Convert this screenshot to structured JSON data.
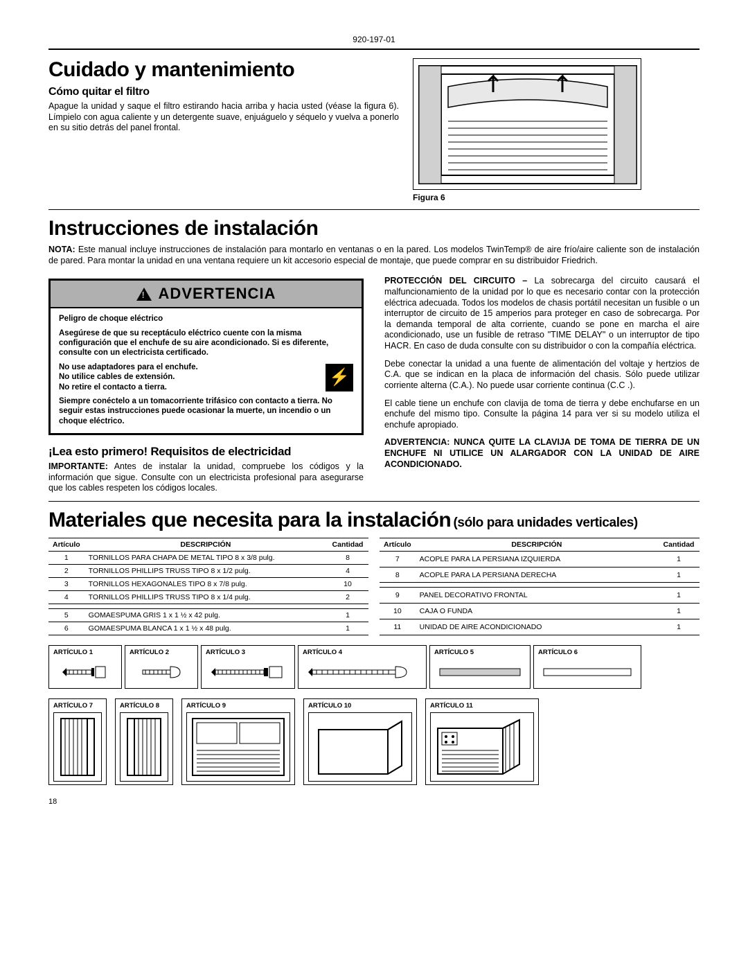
{
  "doc_number": "920-197-01",
  "page_number": "18",
  "care": {
    "title": "Cuidado y mantenimiento",
    "filter_h": "Cómo quitar el filtro",
    "filter_p": "Apague la unidad y saque el filtro estirando hacia arriba y hacia usted (véase la figura 6). Límpielo con agua caliente y un detergente suave, enjuáguelo y séquelo y vuelva a ponerlo en su sitio detrás del panel frontal.",
    "fig_label": "Figura 6"
  },
  "install": {
    "title": "Instrucciones de instalación",
    "nota_label": "NOTA:",
    "nota_text": "Este manual incluye instrucciones de instalación para montarlo en ventanas o en la pared. Los modelos TwinTemp® de aire frío/aire caliente son de instalación de pared. Para montar la unidad en una ventana requiere un kit accesorio especial de montaje, que puede comprar en su distribuidor Friedrich."
  },
  "warn": {
    "header": "ADVERTENCIA",
    "p1_bold": "Peligro de choque eléctrico",
    "p2": "Asegúrese de que su receptáculo eléctrico cuente con la misma configuración que el enchufe de su aire acondicionado. Si es diferente, consulte con un electricista certificado.",
    "p3a": "No use adaptadores para el enchufe.",
    "p3b": "No utilice cables de extensión.",
    "p3c": "No retire el contacto a tierra.",
    "p4": "Siempre conéctelo a un tomacorriente trifásico con contacto a tierra. No seguir estas instrucciones puede ocasionar la muerte, un incendio o un choque eléctrico."
  },
  "elec": {
    "h": "¡Lea esto primero! Requisitos de electricidad",
    "imp_label": "IMPORTANTE:",
    "imp_text": "Antes de instalar la unidad, compruebe los códigos y la información que sigue. Consulte con un electricista profesional para asegurarse que los cables respeten los códigos locales.",
    "circ_label": "PROTECCIÓN DEL CIRCUITO –",
    "circ_text": "La sobrecarga del circuito causará el malfuncionamiento de la unidad por lo que es necesario contar con la protección eléctrica adecuada. Todos los modelos de chasis portátil necesitan un fusible o un interruptor de circuito de 15 amperios para proteger en caso de sobrecarga. Por la demanda temporal de alta corriente, cuando se pone en marcha el aire acondicionado, use un fusible de retraso \"TIME DELAY\" o un interruptor de tipo HACR. En caso de duda consulte con su distribuidor o con la compañía eléctrica.",
    "p2": "Debe conectar la unidad a una fuente de alimentación del voltaje y hertzios de C.A. que se indican en la placa de información del chasis. Sólo puede utilizar corriente alterna (C.A.). No puede usar corriente continua (C.C .).",
    "p3": "El cable tiene un enchufe con clavija de toma de tierra y debe enchufarse en un enchufe del mismo tipo. Consulte la página 14 para ver si su modelo utiliza el enchufe apropiado.",
    "warn2": "ADVERTENCIA: NUNCA QUITE LA CLAVIJA DE TOMA DE TIERRA DE UN ENCHUFE NI UTILICE UN ALARGADOR CON LA UNIDAD DE AIRE ACONDICIONADO."
  },
  "materials": {
    "title": "Materiales que necesita para la instalación",
    "sub": "(sólo para unidades verticales)",
    "headers": {
      "item": "Artículo",
      "desc": "DESCRIPCIÓN",
      "qty": "Cantidad"
    },
    "left": [
      {
        "n": "1",
        "d": "TORNILLOS PARA CHAPA DE METAL TIPO 8 x 3/8 pulg.",
        "q": "8"
      },
      {
        "n": "2",
        "d": "TORNILLOS PHILLIPS TRUSS TIPO 8 x 1/2 pulg.",
        "q": "4"
      },
      {
        "n": "3",
        "d": "TORNILLOS HEXAGONALES TIPO 8 x 7/8 pulg.",
        "q": "10"
      },
      {
        "n": "4",
        "d": "TORNILLOS PHILLIPS TRUSS TIPO 8 x 1/4 pulg.",
        "q": "2"
      },
      {
        "n": "5",
        "d": "GOMAESPUMA GRIS 1  x 1 ½ x 42 pulg.",
        "q": "1"
      },
      {
        "n": "6",
        "d": "GOMAESPUMA BLANCA 1  x 1 ½ x 48 pulg.",
        "q": "1"
      }
    ],
    "right": [
      {
        "n": "7",
        "d": "ACOPLE PARA LA PERSIANA IZQUIERDA",
        "q": "1"
      },
      {
        "n": "8",
        "d": "ACOPLE PARA LA PERSIANA DERECHA",
        "q": "1"
      },
      {
        "n": "9",
        "d": "PANEL DECORATIVO FRONTAL",
        "q": "1"
      },
      {
        "n": "10",
        "d": "CAJA O FUNDA",
        "q": "1"
      },
      {
        "n": "11",
        "d": "UNIDAD DE AIRE ACONDICIONADO",
        "q": "1"
      }
    ],
    "item_labels": {
      "i1": "ARTÍCULO 1",
      "i2": "ARTÍCULO 2",
      "i3": "ARTÍCULO 3",
      "i4": "ARTÍCULO 4",
      "i5": "ARTÍCULO 5",
      "i6": "ARTÍCULO 6",
      "i7": "ARTÍCULO 7",
      "i8": "ARTÍCULO 8",
      "i9": "ARTÍCULO 9",
      "i10": "ARTÍCULO 10",
      "i11": "ARTÍCULO 11"
    }
  }
}
